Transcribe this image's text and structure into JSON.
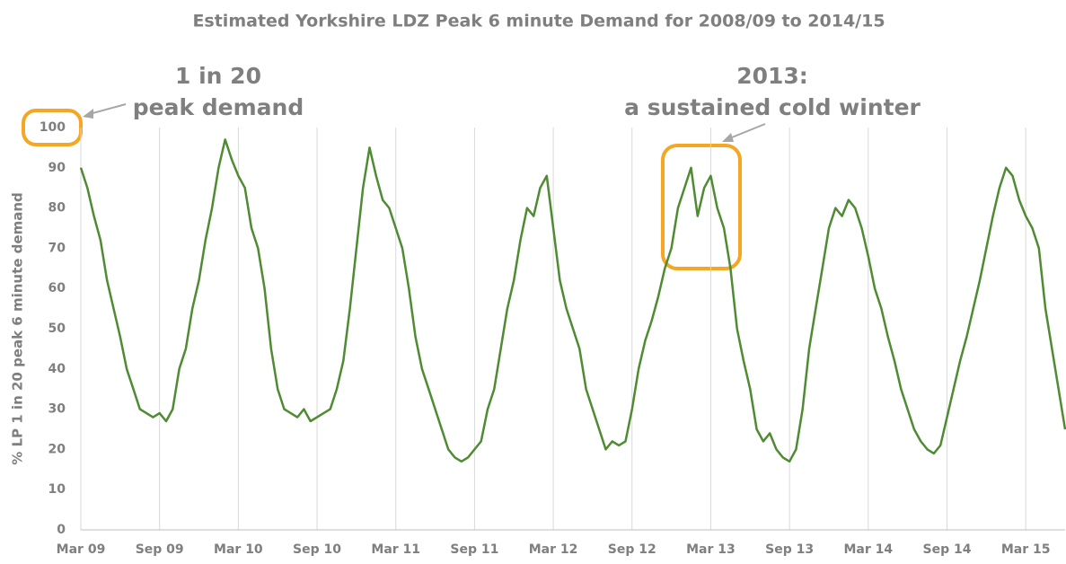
{
  "chart_data": {
    "type": "line",
    "title": "Estimated Yorkshire LDZ Peak 6 minute Demand for 2008/09 to 2014/15",
    "y_label": "% LP 1 in 20 peak 6 minute demand",
    "annotations": [
      "1 in 20",
      "peak demand",
      "2013:",
      "a sustained cold winter"
    ],
    "categories": [
      "Mar 09",
      null,
      null,
      null,
      null,
      null,
      null,
      null,
      null,
      null,
      null,
      null,
      "Sep 09",
      null,
      null,
      null,
      null,
      null,
      null,
      null,
      null,
      null,
      null,
      null,
      "Mar 10",
      null,
      null,
      null,
      null,
      null,
      null,
      null,
      null,
      null,
      null,
      null,
      "Sep 10",
      null,
      null,
      null,
      null,
      null,
      null,
      null,
      null,
      null,
      null,
      null,
      "Mar 11",
      null,
      null,
      null,
      null,
      null,
      null,
      null,
      null,
      null,
      null,
      null,
      "Sep 11",
      null,
      null,
      null,
      null,
      null,
      null,
      null,
      null,
      null,
      null,
      null,
      "Mar 12",
      null,
      null,
      null,
      null,
      null,
      null,
      null,
      null,
      null,
      null,
      null,
      "Sep 12",
      null,
      null,
      null,
      null,
      null,
      null,
      null,
      null,
      null,
      null,
      null,
      "Mar 13",
      null,
      null,
      null,
      null,
      null,
      null,
      null,
      null,
      null,
      null,
      null,
      "Sep 13",
      null,
      null,
      null,
      null,
      null,
      null,
      null,
      null,
      null,
      null,
      null,
      "Mar 14",
      null,
      null,
      null,
      null,
      null,
      null,
      null,
      null,
      null,
      null,
      null,
      "Sep 14",
      null,
      null,
      null,
      null,
      null,
      null,
      null,
      null,
      null,
      null,
      null,
      "Mar 15",
      null,
      null,
      null,
      null,
      null,
      null
    ],
    "series": [
      {
        "name": "Demand",
        "color": "#4e8b32",
        "values": [
          90,
          85,
          78,
          72,
          62,
          55,
          48,
          40,
          35,
          30,
          29,
          28,
          29,
          27,
          30,
          40,
          45,
          55,
          62,
          72,
          80,
          90,
          97,
          92,
          88,
          85,
          75,
          70,
          60,
          45,
          35,
          30,
          29,
          28,
          30,
          27,
          28,
          29,
          30,
          35,
          42,
          55,
          70,
          85,
          95,
          88,
          82,
          80,
          75,
          70,
          60,
          48,
          40,
          35,
          30,
          25,
          20,
          18,
          17,
          18,
          20,
          22,
          30,
          35,
          45,
          55,
          62,
          72,
          80,
          78,
          85,
          88,
          75,
          62,
          55,
          50,
          45,
          35,
          30,
          25,
          20,
          22,
          21,
          22,
          30,
          40,
          47,
          52,
          58,
          65,
          70,
          80,
          85,
          90,
          78,
          85,
          88,
          80,
          75,
          65,
          50,
          42,
          35,
          25,
          22,
          24,
          20,
          18,
          17,
          20,
          30,
          45,
          55,
          65,
          75,
          80,
          78,
          82,
          80,
          75,
          68,
          60,
          55,
          48,
          42,
          35,
          30,
          25,
          22,
          20,
          19,
          21,
          28,
          35,
          42,
          48,
          55,
          62,
          70,
          78,
          85,
          90,
          88,
          82,
          78,
          75,
          70,
          55,
          45,
          35,
          25
        ]
      }
    ],
    "ylim": [
      0,
      100
    ],
    "yticks": [
      0,
      10,
      20,
      30,
      40,
      50,
      60,
      70,
      80,
      90,
      100
    ],
    "grid": "x"
  }
}
